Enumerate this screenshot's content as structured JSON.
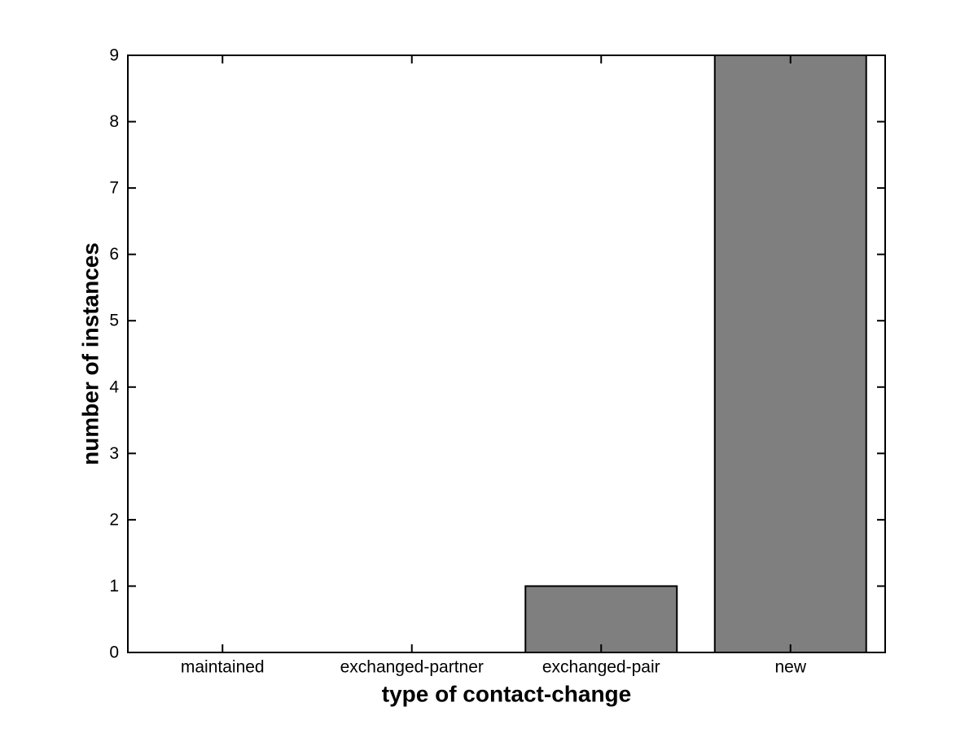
{
  "figure": {
    "background": "#ffffff"
  },
  "chart_data": {
    "type": "bar",
    "title": "",
    "xlabel": "type of contact-change",
    "ylabel": "number of instances",
    "categories": [
      "maintained",
      "exchanged-partner",
      "exchanged-pair",
      "new"
    ],
    "values": [
      0,
      0,
      1,
      9
    ],
    "ylim": [
      0,
      9
    ],
    "yticks": [
      0,
      1,
      2,
      3,
      4,
      5,
      6,
      7,
      8,
      9
    ],
    "grid": false,
    "legend_position": "none",
    "bar_color": "#7f7f7f",
    "bar_edge_color": "#000000",
    "axis_color": "#000000",
    "text_color": "#000000",
    "bar_width_fraction": 0.8
  }
}
